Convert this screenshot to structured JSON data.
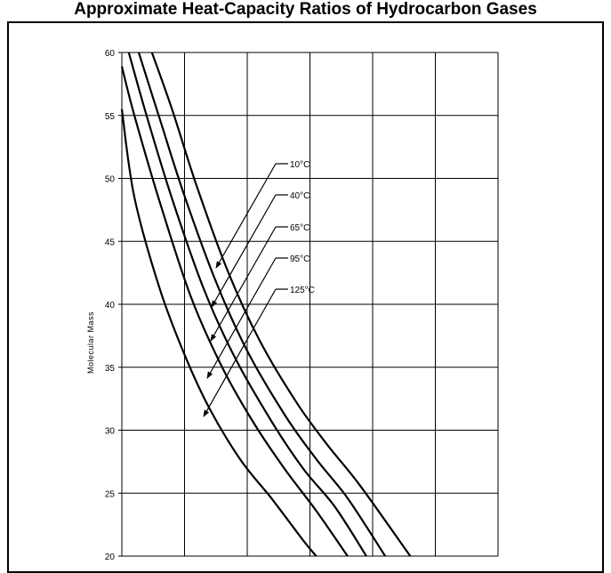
{
  "page": {
    "title": "Approximate Heat-Capacity Ratios of Hydrocarbon Gases"
  },
  "chart_data": {
    "type": "line",
    "title": "Approximate Heat-Capacity Ratios of Hydrocarbon Gases",
    "xlabel": "",
    "ylabel": "Molecular Mass",
    "ylim": [
      20,
      60
    ],
    "yticks": [
      20,
      25,
      30,
      35,
      40,
      45,
      50,
      55,
      60
    ],
    "xlim": [
      0,
      6
    ],
    "xgrid": [
      0,
      1,
      2,
      3,
      4,
      5,
      6
    ],
    "grid": true,
    "line_color": "#000000",
    "series": [
      {
        "name": "10°C",
        "x": [
          0.48,
          0.8,
          1.2,
          1.7,
          2.2,
          2.8,
          3.3,
          3.8,
          4.6
        ],
        "y": [
          60,
          55.5,
          49.3,
          42.5,
          37.1,
          32.1,
          28.7,
          25.6,
          20
        ]
      },
      {
        "name": "40°C",
        "x": [
          0.27,
          0.6,
          1.0,
          1.5,
          2.0,
          2.6,
          3.1,
          3.6,
          4.2
        ],
        "y": [
          60,
          54.8,
          48.6,
          41.8,
          36.3,
          31.2,
          27.7,
          24.6,
          20
        ]
      },
      {
        "name": "65°C",
        "x": [
          0.11,
          0.4,
          0.8,
          1.3,
          1.8,
          2.4,
          2.9,
          3.4,
          3.9
        ],
        "y": [
          60,
          54.9,
          48.4,
          41.3,
          35.8,
          30.6,
          26.9,
          23.9,
          20
        ]
      },
      {
        "name": "95°C",
        "x": [
          0,
          0.2,
          0.6,
          1.1,
          1.6,
          2.1,
          2.6,
          3.1,
          3.6
        ],
        "y": [
          58.9,
          55.0,
          48.2,
          40.6,
          35.0,
          30.6,
          26.9,
          23.6,
          20
        ]
      },
      {
        "name": "125°C",
        "x": [
          0,
          0.2,
          0.6,
          1.0,
          1.4,
          1.9,
          2.4,
          2.9,
          3.1
        ],
        "y": [
          55.5,
          48.5,
          41.3,
          36.0,
          31.7,
          27.6,
          24.5,
          21.2,
          20
        ]
      }
    ],
    "annotations": [
      "10°C",
      "40°C",
      "65°C",
      "95°C",
      "125°C"
    ]
  }
}
